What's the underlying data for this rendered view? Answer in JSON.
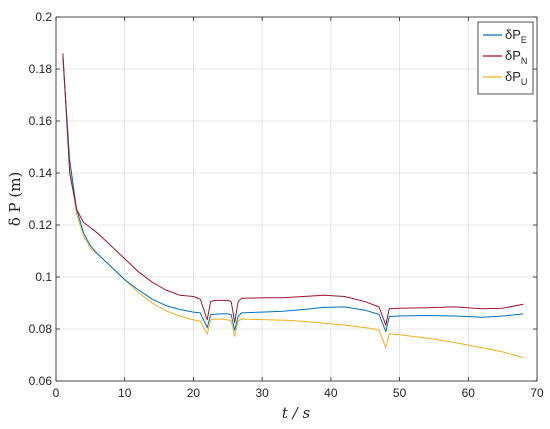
{
  "chart_data": {
    "type": "line",
    "xlabel": "t  / s",
    "ylabel": "δ P (m)",
    "xlim": [
      0,
      70
    ],
    "ylim": [
      0.06,
      0.2
    ],
    "xticks": [
      "0",
      "10",
      "20",
      "30",
      "40",
      "50",
      "60",
      "70"
    ],
    "yticks": [
      "0.06",
      "0.08",
      "0.1",
      "0.12",
      "0.14",
      "0.16",
      "0.18",
      "0.2"
    ],
    "grid": true,
    "legend_position": "top-right",
    "series": [
      {
        "name": "δP",
        "subscript": "E",
        "color": "#0072BD",
        "x": [
          1,
          2,
          3,
          4,
          5,
          6,
          8,
          10,
          12,
          14,
          16,
          18,
          20,
          21,
          22,
          22.5,
          23,
          24,
          25,
          25.5,
          26,
          26.5,
          27,
          30,
          33,
          36,
          39,
          42,
          45,
          47,
          48,
          48.5,
          50,
          54,
          58,
          62,
          65,
          68
        ],
        "y": [
          0.184,
          0.145,
          0.126,
          0.117,
          0.112,
          0.109,
          0.104,
          0.099,
          0.095,
          0.0915,
          0.089,
          0.0875,
          0.0865,
          0.0862,
          0.0805,
          0.0855,
          0.0857,
          0.0858,
          0.0858,
          0.0855,
          0.0795,
          0.0848,
          0.0862,
          0.0865,
          0.0868,
          0.0875,
          0.0883,
          0.0885,
          0.0872,
          0.0856,
          0.079,
          0.0848,
          0.085,
          0.0852,
          0.085,
          0.0845,
          0.085,
          0.0858
        ]
      },
      {
        "name": "δP",
        "subscript": "N",
        "color": "#A2142F",
        "x": [
          1,
          2,
          3,
          4,
          5,
          6,
          8,
          10,
          12,
          14,
          16,
          18,
          20,
          21,
          22,
          22.5,
          23,
          24,
          25,
          25.5,
          26,
          26.5,
          27,
          30,
          33,
          36,
          39,
          42,
          45,
          47,
          48,
          48.5,
          50,
          54,
          58,
          62,
          65,
          68
        ],
        "y": [
          0.186,
          0.14,
          0.126,
          0.121,
          0.119,
          0.117,
          0.112,
          0.107,
          0.102,
          0.098,
          0.095,
          0.093,
          0.0925,
          0.0915,
          0.0835,
          0.0905,
          0.091,
          0.091,
          0.091,
          0.0905,
          0.0825,
          0.0905,
          0.0918,
          0.092,
          0.092,
          0.0925,
          0.093,
          0.0925,
          0.0905,
          0.0885,
          0.0815,
          0.0878,
          0.088,
          0.0882,
          0.0885,
          0.0878,
          0.088,
          0.0895
        ]
      },
      {
        "name": "δP",
        "subscript": "U",
        "color": "#EDB120",
        "x": [
          1,
          2,
          3,
          4,
          5,
          6,
          8,
          10,
          12,
          14,
          16,
          18,
          20,
          21,
          22,
          22.5,
          23,
          24,
          25,
          25.5,
          26,
          26.5,
          27,
          30,
          34,
          38,
          42,
          46,
          47,
          48,
          48.5,
          50,
          54,
          58,
          62,
          65,
          68
        ],
        "y": [
          0.185,
          0.143,
          0.124,
          0.116,
          0.111,
          0.109,
          0.104,
          0.099,
          0.094,
          0.09,
          0.087,
          0.085,
          0.0835,
          0.083,
          0.078,
          0.0835,
          0.0838,
          0.0838,
          0.0835,
          0.0832,
          0.0772,
          0.083,
          0.0838,
          0.0836,
          0.0833,
          0.0825,
          0.0815,
          0.0802,
          0.0795,
          0.0728,
          0.0782,
          0.0778,
          0.0765,
          0.0748,
          0.0728,
          0.0712,
          0.069
        ]
      }
    ]
  }
}
